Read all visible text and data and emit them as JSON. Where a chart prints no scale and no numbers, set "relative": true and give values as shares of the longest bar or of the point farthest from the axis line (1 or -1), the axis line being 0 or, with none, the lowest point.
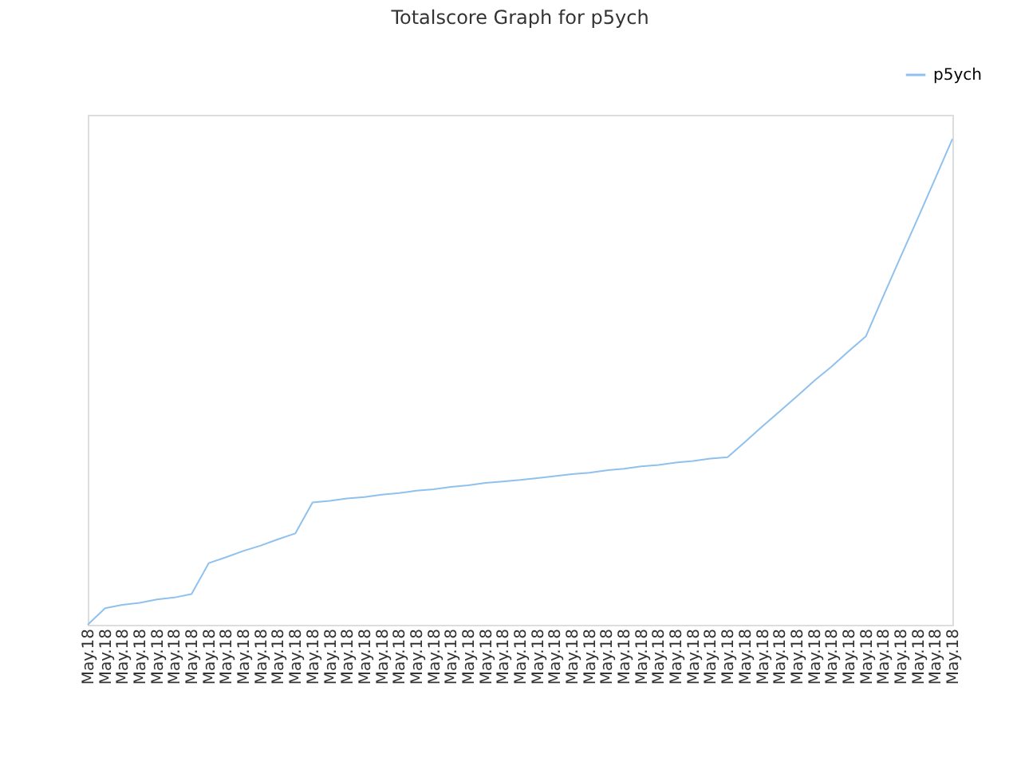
{
  "chart_data": {
    "type": "line",
    "title": "Totalscore Graph for p5ych",
    "categories": [
      "May.18",
      "May.18",
      "May.18",
      "May.18",
      "May.18",
      "May.18",
      "May.18",
      "May.18",
      "May.18",
      "May.18",
      "May.18",
      "May.18",
      "May.18",
      "May.18",
      "May.18",
      "May.18",
      "May.18",
      "May.18",
      "May.18",
      "May.18",
      "May.18",
      "May.18",
      "May.18",
      "May.18",
      "May.18",
      "May.18",
      "May.18",
      "May.18",
      "May.18",
      "May.18",
      "May.18",
      "May.18",
      "May.18",
      "May.18",
      "May.18",
      "May.18",
      "May.18",
      "May.18",
      "May.18",
      "May.18",
      "May.18",
      "May.18",
      "May.18",
      "May.18",
      "May.18",
      "May.18",
      "May.18",
      "May.18",
      "May.18",
      "May.18",
      "May.18"
    ],
    "series": [
      {
        "name": "p5ych",
        "color": "#8fc1ef",
        "values": [
          0,
          0.034,
          0.041,
          0.045,
          0.052,
          0.056,
          0.063,
          0.127,
          0.139,
          0.152,
          0.163,
          0.176,
          0.188,
          0.252,
          0.255,
          0.26,
          0.263,
          0.268,
          0.271,
          0.276,
          0.279,
          0.284,
          0.287,
          0.292,
          0.295,
          0.298,
          0.302,
          0.306,
          0.31,
          0.313,
          0.318,
          0.321,
          0.326,
          0.329,
          0.334,
          0.337,
          0.342,
          0.345,
          0.376,
          0.408,
          0.439,
          0.47,
          0.502,
          0.531,
          0.563,
          0.594,
          0.676,
          0.757,
          0.837,
          0.918,
          1
        ]
      }
    ],
    "relative": true,
    "legend": "top right"
  }
}
